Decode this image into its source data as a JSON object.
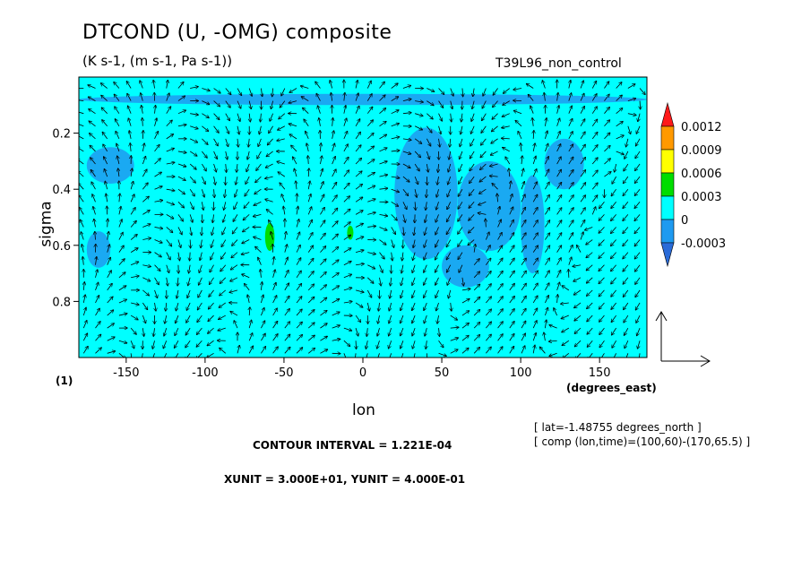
{
  "title": "DTCOND (U, -OMG) composite",
  "subtitle": "(K s-1, (m s-1, Pa s-1))",
  "run_name": "T39L96_non_control",
  "panel_label": "(1)",
  "info": {
    "location": "[ lat=-1.48755 degrees_north ]",
    "composite": "[ comp (lon,time)=(100,60)-(170,65.5) ]",
    "contour_interval": "CONTOUR INTERVAL = 1.221E-04",
    "units": "XUNIT = 3.000E+01, YUNIT = 4.000E-01"
  },
  "colors": {
    "neg2": "#2a6bd8",
    "neg1": "#1e9af0",
    "zero": "#00ffff",
    "pos1": "#00dd00",
    "pos2": "#ffff00",
    "pos3": "#ff9900",
    "pos4": "#ff1a1a"
  },
  "chart_data": {
    "type": "heatmap",
    "overlay": "vector",
    "xlabel": "lon",
    "xunits": "(degrees_east)",
    "ylabel": "sigma",
    "xlim": [
      -180,
      180
    ],
    "ylim": [
      1.0,
      0.0
    ],
    "xticks": [
      -150,
      -100,
      -50,
      0,
      50,
      100,
      150
    ],
    "yticks": [
      0.2,
      0.4,
      0.6,
      0.8
    ],
    "colorbar": {
      "levels": [
        -0.0003,
        0,
        0.0003,
        0.0006,
        0.0009,
        0.0012
      ],
      "tick_labels": [
        "0.0012",
        "0.0009",
        "0.0006",
        "0.0003",
        "0",
        "-0.0003"
      ]
    },
    "background_level": 0,
    "regions": [
      {
        "level": -0.0003,
        "lon": [
          20,
          60
        ],
        "sigma": [
          0.18,
          0.65
        ]
      },
      {
        "level": -0.0003,
        "lon": [
          60,
          100
        ],
        "sigma": [
          0.3,
          0.62
        ]
      },
      {
        "level": -0.0003,
        "lon": [
          100,
          115
        ],
        "sigma": [
          0.35,
          0.7
        ]
      },
      {
        "level": -0.0003,
        "lon": [
          115,
          140
        ],
        "sigma": [
          0.22,
          0.4
        ]
      },
      {
        "level": -0.0003,
        "lon": [
          -175,
          -145
        ],
        "sigma": [
          0.25,
          0.38
        ]
      },
      {
        "level": -0.0003,
        "lon": [
          -175,
          -160
        ],
        "sigma": [
          0.55,
          0.68
        ]
      },
      {
        "level": -0.0003,
        "lon": [
          50,
          80
        ],
        "sigma": [
          0.6,
          0.75
        ]
      },
      {
        "level": -0.0003,
        "lon": [
          -180,
          180
        ],
        "sigma": [
          0.06,
          0.1
        ]
      },
      {
        "level": 0.0003,
        "lon": [
          -62,
          -56
        ],
        "sigma": [
          0.52,
          0.62
        ]
      },
      {
        "level": 0.0003,
        "lon": [
          -10,
          -6
        ],
        "sigma": [
          0.53,
          0.58
        ]
      }
    ],
    "reference_vector": {
      "u": 30,
      "omg": 0.4
    }
  }
}
